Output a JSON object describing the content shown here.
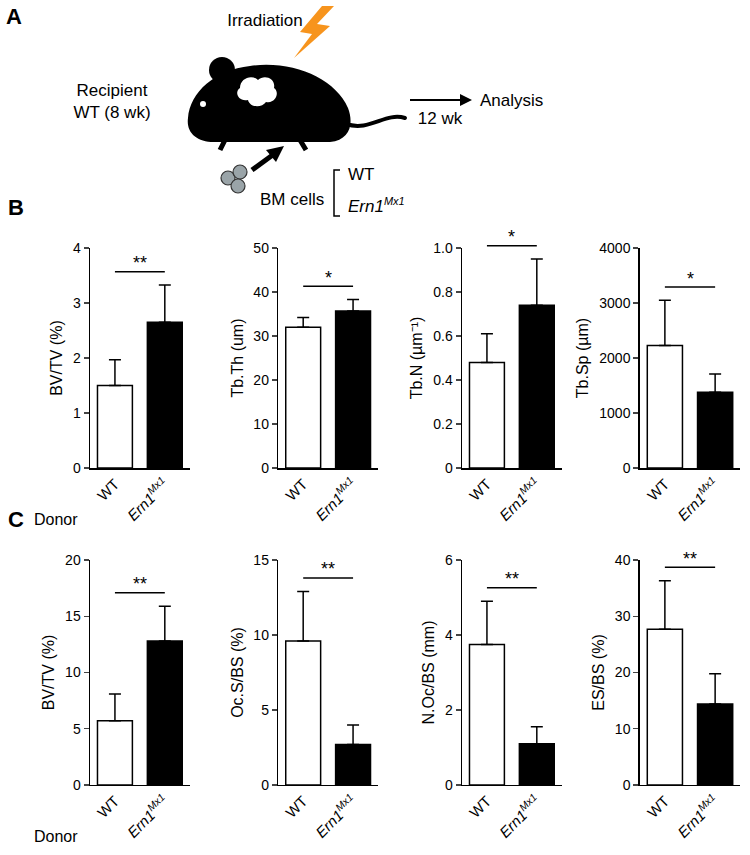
{
  "diagram": {
    "label": "A",
    "recipient": "Recipient",
    "recipient_detail": "WT (8 wk)",
    "treatment": "Irradiation",
    "donor_cells": "BM cells",
    "donors": [
      "WT",
      "Ern1Mx1"
    ],
    "interval": "12 wk",
    "endpoint": "Analysis"
  },
  "chart_data": [
    {
      "type": "bar",
      "panel": "B",
      "xlabel": "Donor",
      "ylabel": "BV/TV (%)",
      "categories": [
        "WT",
        "Ern1Mx1"
      ],
      "values": [
        1.5,
        2.65
      ],
      "errors": [
        0.47,
        0.68
      ],
      "colors": [
        "#ffffff",
        "#000000"
      ],
      "ylim": [
        0,
        4
      ],
      "yticks": [
        0,
        1,
        2,
        3,
        4
      ],
      "annotations": [
        {
          "text": "**"
        }
      ]
    },
    {
      "type": "bar",
      "panel": "B",
      "ylabel": "Tb.Th (um)",
      "categories": [
        "WT",
        "Ern1Mx1"
      ],
      "values": [
        32,
        35.7
      ],
      "errors": [
        2.2,
        2.6
      ],
      "colors": [
        "#ffffff",
        "#000000"
      ],
      "ylim": [
        0,
        50
      ],
      "yticks": [
        0,
        10,
        20,
        30,
        40,
        50
      ],
      "annotations": [
        {
          "text": "*"
        }
      ]
    },
    {
      "type": "bar",
      "panel": "B",
      "ylabel": "Tb.N (µm⁻¹)",
      "categories": [
        "WT",
        "Ern1Mx1"
      ],
      "values": [
        0.48,
        0.74
      ],
      "errors": [
        0.13,
        0.21
      ],
      "colors": [
        "#ffffff",
        "#000000"
      ],
      "ylim": [
        0,
        1
      ],
      "yticks": [
        0,
        0.2,
        0.4,
        0.6,
        0.8,
        {
          "value": 1,
          "label": "1.0"
        }
      ],
      "annotations": [
        {
          "text": "*"
        }
      ]
    },
    {
      "type": "bar",
      "panel": "B",
      "ylabel": "Tb.Sp (µm)",
      "categories": [
        "WT",
        "Ern1Mx1"
      ],
      "values": [
        2230,
        1380
      ],
      "errors": [
        820,
        330
      ],
      "colors": [
        "#ffffff",
        "#000000"
      ],
      "ylim": [
        0,
        4000
      ],
      "yticks": [
        0,
        1000,
        2000,
        3000,
        4000
      ],
      "annotations": [
        {
          "text": "*"
        }
      ]
    },
    {
      "type": "bar",
      "panel": "C",
      "xlabel": "Donor",
      "ylabel": "BV/TV (%)",
      "categories": [
        "WT",
        "Ern1Mx1"
      ],
      "values": [
        5.7,
        12.8
      ],
      "errors": [
        2.4,
        3.1
      ],
      "colors": [
        "#ffffff",
        "#000000"
      ],
      "ylim": [
        0,
        20
      ],
      "yticks": [
        0,
        5,
        10,
        15,
        20
      ],
      "annotations": [
        {
          "text": "**"
        }
      ]
    },
    {
      "type": "bar",
      "panel": "C",
      "ylabel": "Oc.S/BS (%)",
      "categories": [
        "WT",
        "Ern1Mx1"
      ],
      "values": [
        9.6,
        2.7
      ],
      "errors": [
        3.3,
        1.3
      ],
      "colors": [
        "#ffffff",
        "#000000"
      ],
      "ylim": [
        0,
        15
      ],
      "yticks": [
        0,
        5,
        10,
        15
      ],
      "annotations": [
        {
          "text": "**"
        }
      ]
    },
    {
      "type": "bar",
      "panel": "C",
      "ylabel": "N.Oc/BS (mm)",
      "categories": [
        "WT",
        "Ern1Mx1"
      ],
      "values": [
        3.75,
        1.1
      ],
      "errors": [
        1.15,
        0.45
      ],
      "colors": [
        "#ffffff",
        "#000000"
      ],
      "ylim": [
        0,
        6
      ],
      "yticks": [
        0,
        2,
        4,
        6
      ],
      "annotations": [
        {
          "text": "**"
        }
      ]
    },
    {
      "type": "bar",
      "panel": "C",
      "ylabel": "ES/BS (%)",
      "categories": [
        "WT",
        "Ern1Mx1"
      ],
      "values": [
        27.7,
        14.4
      ],
      "errors": [
        8.6,
        5.4
      ],
      "colors": [
        "#ffffff",
        "#000000"
      ],
      "ylim": [
        0,
        40
      ],
      "yticks": [
        0,
        10,
        20,
        30,
        40
      ],
      "annotations": [
        {
          "text": "**"
        }
      ]
    }
  ]
}
